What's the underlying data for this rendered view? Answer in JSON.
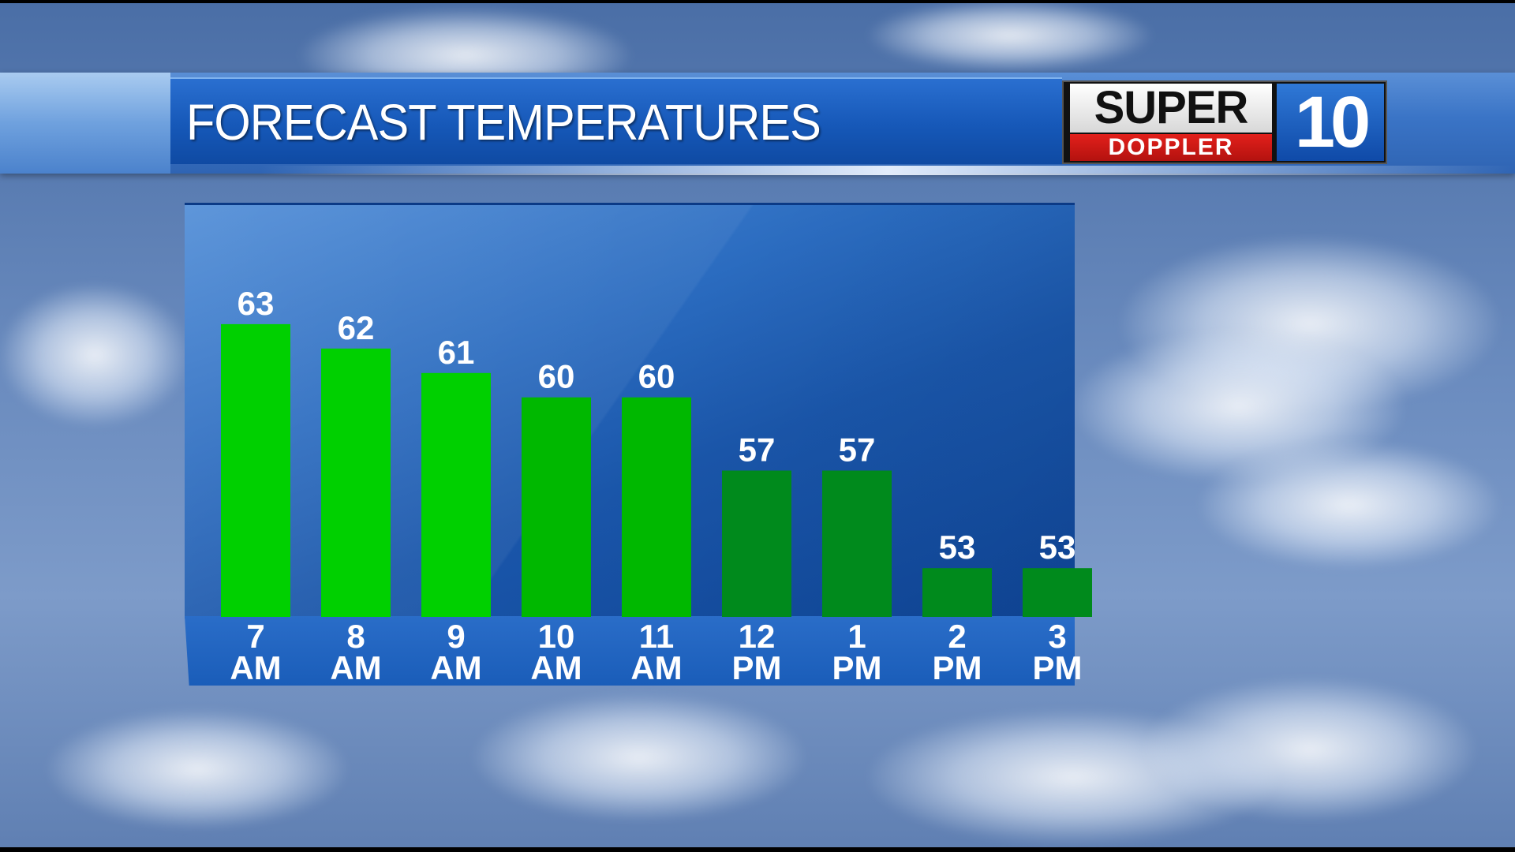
{
  "header": {
    "title": "FORECAST TEMPERATURES"
  },
  "logo": {
    "line1": "SUPER",
    "line2": "DOPPLER",
    "number": "10"
  },
  "colors": {
    "bar_warm": "#00d000",
    "bar_mid": "#00b800",
    "bar_cool": "#008a1c",
    "panel_blue": "#1a56aa",
    "header_blue": "#1658b8",
    "logo_red": "#d01a16"
  },
  "chart_data": {
    "type": "bar",
    "title": "FORECAST TEMPERATURES",
    "categories": [
      [
        "7",
        "AM"
      ],
      [
        "8",
        "AM"
      ],
      [
        "9",
        "AM"
      ],
      [
        "10",
        "AM"
      ],
      [
        "11",
        "AM"
      ],
      [
        "12",
        "PM"
      ],
      [
        "1",
        "PM"
      ],
      [
        "2",
        "PM"
      ],
      [
        "3",
        "PM"
      ]
    ],
    "values": [
      63,
      62,
      61,
      60,
      60,
      57,
      57,
      53,
      53
    ],
    "data_labels": [
      "63",
      "62",
      "61",
      "60",
      "60",
      "57",
      "57",
      "53",
      "53"
    ],
    "xlabel": "",
    "ylabel": "",
    "ylim": [
      51,
      64
    ],
    "grid": false,
    "legend": "none"
  }
}
